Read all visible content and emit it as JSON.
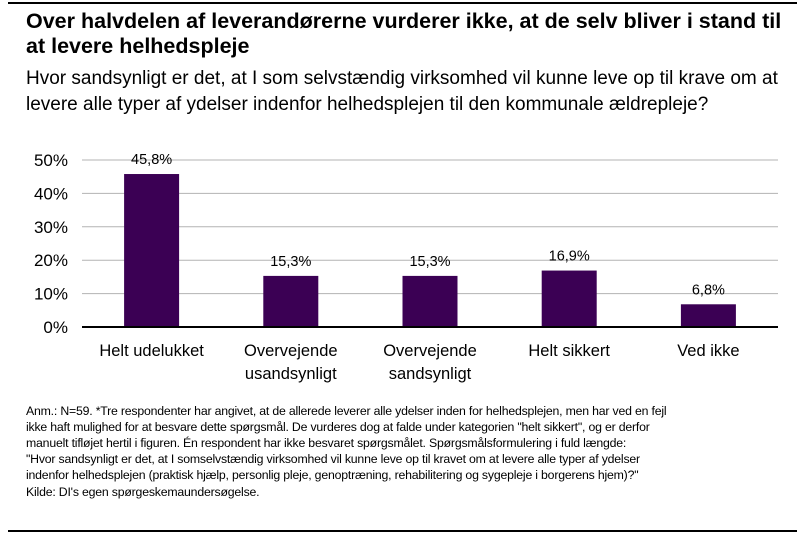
{
  "chart_data": {
    "type": "bar",
    "title": "Over halvdelen af leverandørerne vurderer ikke, at de selv bliver i stand til at levere helhedspleje",
    "subtitle": "Hvor sandsynligt er det, at I som selvstændig virksomhed vil kunne leve op til krave om at levere alle typer af ydelser indenfor helhedsplejen til den kommunale ældrepleje?",
    "categories": [
      [
        "Helt udelukket"
      ],
      [
        "Overvejende",
        "usandsynligt"
      ],
      [
        "Overvejende",
        "sandsynligt"
      ],
      [
        "Helt sikkert"
      ],
      [
        "Ved ikke"
      ]
    ],
    "values": [
      45.8,
      15.3,
      15.3,
      16.9,
      6.8
    ],
    "data_labels": [
      "45,8%",
      "15,3%",
      "15,3%",
      "16,9%",
      "6,8%"
    ],
    "yticks": [
      0,
      10,
      20,
      30,
      40,
      50
    ],
    "ytick_labels": [
      "0%",
      "10%",
      "20%",
      "30%",
      "40%",
      "50%"
    ],
    "ylim": [
      0,
      50
    ],
    "xlabel": "",
    "ylabel": "",
    "grid": true,
    "bar_color": "#3b0054"
  },
  "note_lines": [
    "Anm.: N=59. *Tre respondenter har angivet, at de allerede leverer alle ydelser inden for helhedsplejen, men har ved en fejl",
    "ikke haft mulighed for at besvare dette spørgsmål. De vurderes dog at falde under kategorien \"helt sikkert\", og er derfor",
    "manuelt tifløjet hertil i figuren. Én respondent har ikke besvaret spørgsmålet. Spørgsmålsformulering i fuld længde:",
    "\"Hvor sandsynligt er det, at I somselvstændig virksomhed vil kunne leve op til kravet om at levere alle typer af ydelser",
    "indenfor helhedsplejen (praktisk hjælp, personlig pleje, genoptræning, rehabilitering og sygepleje i borgerens hjem)?\"",
    "Kilde: DI's egen spørgeskemaundersøgelse."
  ]
}
